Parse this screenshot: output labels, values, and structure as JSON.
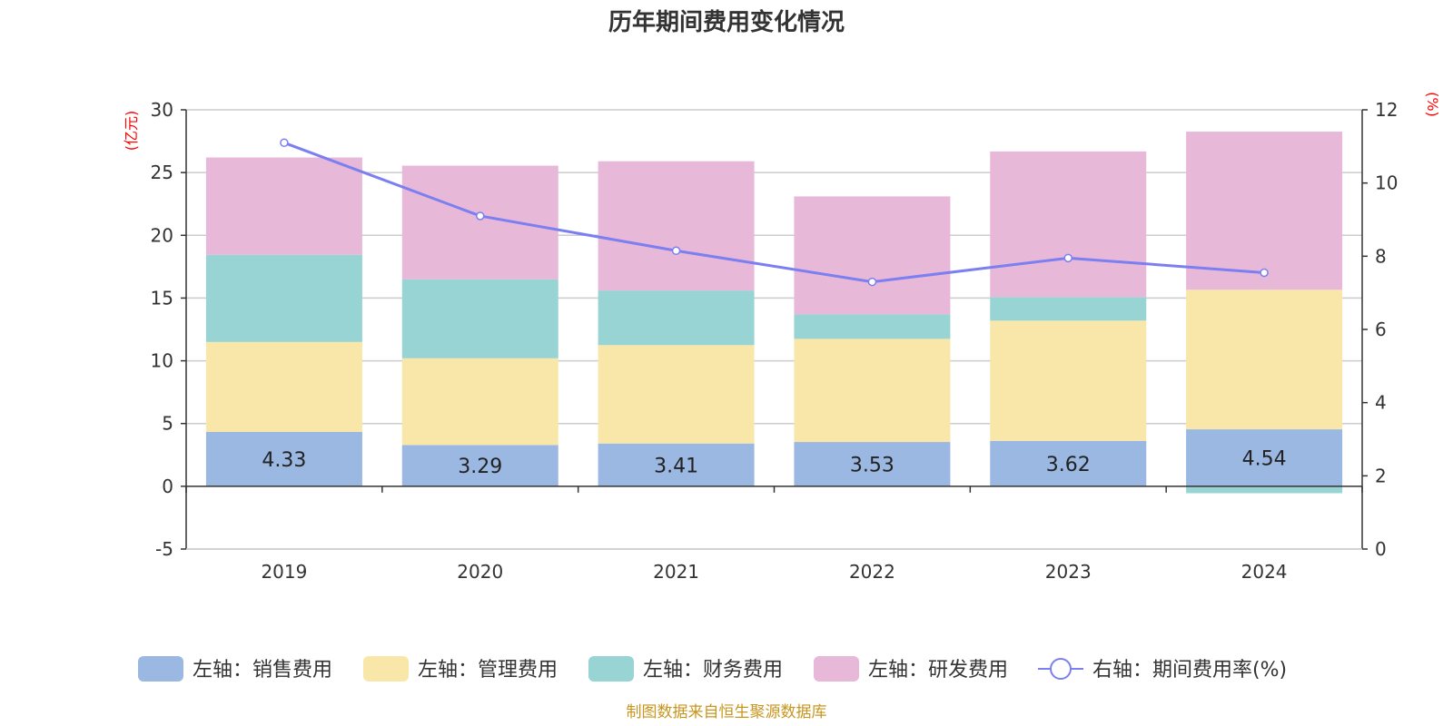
{
  "chart_data": {
    "type": "bar",
    "title": "历年期间费用变化情况",
    "categories": [
      "2019",
      "2020",
      "2021",
      "2022",
      "2023",
      "2024"
    ],
    "series": [
      {
        "name": "左轴：销售费用",
        "axis": "left",
        "kind": "bar",
        "color": "#9bb8e3",
        "values": [
          4.33,
          3.29,
          3.41,
          3.53,
          3.62,
          4.54
        ],
        "show_labels": true
      },
      {
        "name": "左轴：管理费用",
        "axis": "left",
        "kind": "bar",
        "color": "#f8e7a8",
        "values": [
          7.17,
          6.91,
          7.84,
          8.22,
          9.58,
          11.12
        ]
      },
      {
        "name": "左轴：财务费用",
        "axis": "left",
        "kind": "bar",
        "color": "#97d4d3",
        "values": [
          6.95,
          6.3,
          4.35,
          1.95,
          1.88,
          -0.55
        ]
      },
      {
        "name": "左轴：研发费用",
        "axis": "left",
        "kind": "bar",
        "color": "#e8b8d9",
        "values": [
          7.75,
          9.05,
          10.3,
          9.4,
          11.6,
          12.6
        ]
      },
      {
        "name": "右轴：期间费用率(%)",
        "axis": "right",
        "kind": "line",
        "color": "#7b7ff0",
        "values": [
          11.1,
          9.1,
          8.15,
          7.3,
          7.95,
          7.55
        ]
      }
    ],
    "left_axis": {
      "unit": "(亿元)",
      "ylim": [
        -5,
        30
      ],
      "ticks": [
        "-5",
        "0",
        "5",
        "10",
        "15",
        "20",
        "25",
        "30"
      ]
    },
    "right_axis": {
      "unit": "(%)",
      "ylim": [
        0,
        12
      ],
      "ticks": [
        "0",
        "2",
        "4",
        "6",
        "8",
        "10",
        "12"
      ]
    },
    "grid": true,
    "legend_position": "bottom"
  },
  "footer": "制图数据来自恒生聚源数据库"
}
